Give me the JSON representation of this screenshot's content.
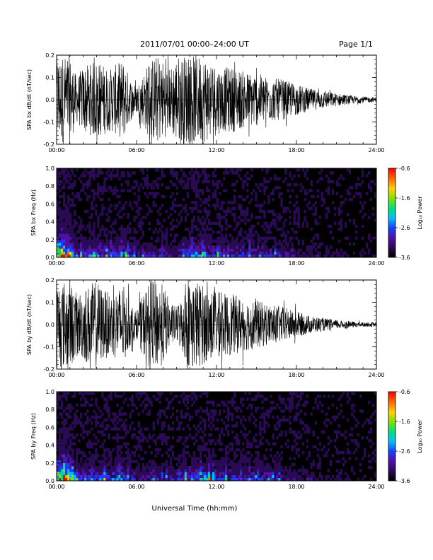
{
  "header": {
    "title": "2011/07/01   00:00–24:00 UT",
    "page": "Page 1/1"
  },
  "footer": {
    "xlabel": "Universal Time (hh:mm)"
  },
  "colors": {
    "trace": "#000000",
    "background": "#000000",
    "colormap": [
      "#000000",
      "#2a0a55",
      "#4f12a8",
      "#1a3dff",
      "#00bfff",
      "#00e07a",
      "#7fe000",
      "#ffd000",
      "#ff6a00",
      "#ff0000"
    ]
  },
  "chart_data": [
    {
      "type": "line",
      "ylabel": "SPA bx dB/dt (nT/sec)",
      "xlim": [
        0,
        24
      ],
      "ylim": [
        -0.2,
        0.2
      ],
      "yticks": [
        "-0.2",
        "-0.1",
        "0.0",
        "0.1",
        "0.2"
      ],
      "xticks": [
        "00:00",
        "06:00",
        "12:00",
        "18:00",
        "24:00"
      ],
      "envelope": {
        "hours": [
          0,
          0.5,
          1,
          1.5,
          2,
          2.5,
          3,
          3.5,
          4,
          4.5,
          5,
          5.5,
          6,
          6.5,
          7,
          7.5,
          8,
          8.5,
          9,
          9.5,
          10,
          10.5,
          11,
          11.5,
          12,
          12.5,
          13,
          14,
          15,
          16,
          17,
          18,
          19,
          20,
          21,
          22,
          23,
          24
        ],
        "amplitude": [
          0.2,
          0.2,
          0.2,
          0.1,
          0.15,
          0.16,
          0.18,
          0.16,
          0.14,
          0.16,
          0.18,
          0.1,
          0.06,
          0.12,
          0.18,
          0.2,
          0.18,
          0.14,
          0.2,
          0.2,
          0.2,
          0.2,
          0.2,
          0.18,
          0.16,
          0.14,
          0.15,
          0.13,
          0.12,
          0.1,
          0.09,
          0.07,
          0.05,
          0.04,
          0.03,
          0.02,
          0.015,
          0.01
        ]
      }
    },
    {
      "type": "heatmap",
      "ylabel": "SPA bx Freq (Hz)",
      "xlim": [
        0,
        24
      ],
      "ylim": [
        0,
        1
      ],
      "yticks": [
        "0.0",
        "0.2",
        "0.4",
        "0.6",
        "0.8",
        "1.0"
      ],
      "xticks": [
        "00:00",
        "06:00",
        "12:00",
        "18:00",
        "24:00"
      ],
      "colorbar": {
        "label": "Log₁₀ Power",
        "range": [
          -3.6,
          -0.6
        ],
        "ticks": [
          "-0.6",
          "-1.6",
          "-2.6",
          "-3.6"
        ]
      }
    },
    {
      "type": "line",
      "ylabel": "SPA by dB/dt (nT/sec)",
      "xlim": [
        0,
        24
      ],
      "ylim": [
        -0.2,
        0.2
      ],
      "yticks": [
        "-0.2",
        "-0.1",
        "0.0",
        "0.1",
        "0.2"
      ],
      "xticks": [
        "00:00",
        "06:00",
        "12:00",
        "18:00",
        "24:00"
      ],
      "envelope": {
        "hours": [
          0,
          0.5,
          1,
          1.5,
          2,
          2.5,
          3,
          3.5,
          4,
          4.5,
          5,
          5.5,
          6,
          6.5,
          7,
          7.5,
          8,
          8.5,
          9,
          9.5,
          10,
          10.5,
          11,
          11.5,
          12,
          12.5,
          13,
          14,
          15,
          16,
          17,
          18,
          19,
          20,
          21,
          22,
          23,
          24
        ],
        "amplitude": [
          0.2,
          0.2,
          0.2,
          0.14,
          0.16,
          0.18,
          0.2,
          0.16,
          0.14,
          0.16,
          0.18,
          0.1,
          0.06,
          0.14,
          0.2,
          0.2,
          0.18,
          0.1,
          0.08,
          0.14,
          0.2,
          0.2,
          0.18,
          0.16,
          0.15,
          0.14,
          0.14,
          0.12,
          0.11,
          0.09,
          0.08,
          0.06,
          0.04,
          0.03,
          0.02,
          0.015,
          0.01,
          0.01
        ]
      }
    },
    {
      "type": "heatmap",
      "ylabel": "SPA by Freq (Hz)",
      "xlim": [
        0,
        24
      ],
      "ylim": [
        0,
        1
      ],
      "yticks": [
        "0.0",
        "0.2",
        "0.4",
        "0.6",
        "0.8",
        "1.0"
      ],
      "xticks": [
        "00:00",
        "06:00",
        "12:00",
        "18:00",
        "24:00"
      ],
      "colorbar": {
        "label": "Log₁₀ Power",
        "range": [
          -3.6,
          -0.6
        ],
        "ticks": [
          "-0.6",
          "-1.6",
          "-2.6",
          "-3.6"
        ]
      }
    }
  ]
}
